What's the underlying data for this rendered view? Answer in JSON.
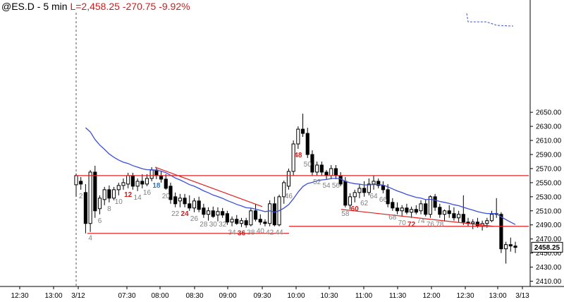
{
  "header": {
    "symbol": "@ES.D - 5 min",
    "last_label": "L=2,458.25",
    "change": "-270.75",
    "change_pct": "-9.92%"
  },
  "colors": {
    "up_candle": "#ffffff",
    "down_candle": "#000000",
    "ema": "#3b4fd9",
    "trendline": "#e02020",
    "bar_number_gray": "#808080",
    "bar_number_red": "#d01c1c",
    "bar_number_blue": "#1e78d0",
    "prev_day_dashed": "#3b4fd9"
  },
  "chart_data": {
    "type": "candlestick",
    "title": "@ES.D - 5 min",
    "ylim": [
      2400,
      2660
    ],
    "y_ticks": [
      "2650.00",
      "2630.00",
      "2610.00",
      "2590.00",
      "2570.00",
      "2550.00",
      "2530.00",
      "2510.00",
      "2490.00",
      "2470.00",
      "2450.00",
      "2430.00",
      "2410.00"
    ],
    "x_ticks": [
      "12:30",
      "13:00",
      "3/12",
      "07:30",
      "08:00",
      "08:30",
      "09:00",
      "09:30",
      "10:00",
      "10:30",
      "11:00",
      "11:30",
      "12:00",
      "12:30",
      "13:00",
      "3/13"
    ],
    "last_price": "2458.25",
    "candles": [
      {
        "o": 2547,
        "h": 2563,
        "l": 2530,
        "c": 2560
      },
      {
        "o": 2552,
        "h": 2558,
        "l": 2540,
        "c": 2548
      },
      {
        "o": 2536,
        "h": 2548,
        "l": 2478,
        "c": 2492
      },
      {
        "o": 2492,
        "h": 2568,
        "l": 2480,
        "c": 2565
      },
      {
        "o": 2565,
        "h": 2574,
        "l": 2500,
        "c": 2510
      },
      {
        "o": 2513,
        "h": 2532,
        "l": 2505,
        "c": 2528
      },
      {
        "o": 2526,
        "h": 2544,
        "l": 2518,
        "c": 2540
      },
      {
        "o": 2540,
        "h": 2546,
        "l": 2522,
        "c": 2528
      },
      {
        "o": 2528,
        "h": 2544,
        "l": 2525,
        "c": 2540
      },
      {
        "o": 2540,
        "h": 2550,
        "l": 2532,
        "c": 2546
      },
      {
        "o": 2546,
        "h": 2556,
        "l": 2540,
        "c": 2550
      },
      {
        "o": 2548,
        "h": 2564,
        "l": 2542,
        "c": 2560
      },
      {
        "o": 2560,
        "h": 2564,
        "l": 2540,
        "c": 2545
      },
      {
        "o": 2545,
        "h": 2556,
        "l": 2538,
        "c": 2552
      },
      {
        "o": 2552,
        "h": 2562,
        "l": 2542,
        "c": 2548
      },
      {
        "o": 2548,
        "h": 2562,
        "l": 2545,
        "c": 2556
      },
      {
        "o": 2556,
        "h": 2572,
        "l": 2552,
        "c": 2568
      },
      {
        "o": 2568,
        "h": 2572,
        "l": 2555,
        "c": 2560
      },
      {
        "o": 2560,
        "h": 2566,
        "l": 2550,
        "c": 2555
      },
      {
        "o": 2555,
        "h": 2562,
        "l": 2540,
        "c": 2542
      },
      {
        "o": 2545,
        "h": 2550,
        "l": 2520,
        "c": 2526
      },
      {
        "o": 2530,
        "h": 2536,
        "l": 2515,
        "c": 2520
      },
      {
        "o": 2524,
        "h": 2534,
        "l": 2515,
        "c": 2528
      },
      {
        "o": 2528,
        "h": 2534,
        "l": 2515,
        "c": 2520
      },
      {
        "o": 2520,
        "h": 2532,
        "l": 2510,
        "c": 2514
      },
      {
        "o": 2514,
        "h": 2528,
        "l": 2508,
        "c": 2524
      },
      {
        "o": 2524,
        "h": 2530,
        "l": 2508,
        "c": 2512
      },
      {
        "o": 2514,
        "h": 2520,
        "l": 2500,
        "c": 2505
      },
      {
        "o": 2505,
        "h": 2515,
        "l": 2496,
        "c": 2510
      },
      {
        "o": 2510,
        "h": 2516,
        "l": 2500,
        "c": 2502
      },
      {
        "o": 2504,
        "h": 2515,
        "l": 2495,
        "c": 2509
      },
      {
        "o": 2509,
        "h": 2514,
        "l": 2500,
        "c": 2504
      },
      {
        "o": 2506,
        "h": 2510,
        "l": 2490,
        "c": 2494
      },
      {
        "o": 2494,
        "h": 2502,
        "l": 2488,
        "c": 2498
      },
      {
        "o": 2498,
        "h": 2504,
        "l": 2490,
        "c": 2492
      },
      {
        "o": 2492,
        "h": 2500,
        "l": 2487,
        "c": 2496
      },
      {
        "o": 2496,
        "h": 2500,
        "l": 2486,
        "c": 2490
      },
      {
        "o": 2490,
        "h": 2514,
        "l": 2488,
        "c": 2510
      },
      {
        "o": 2510,
        "h": 2520,
        "l": 2495,
        "c": 2498
      },
      {
        "o": 2498,
        "h": 2505,
        "l": 2490,
        "c": 2494
      },
      {
        "o": 2494,
        "h": 2498,
        "l": 2488,
        "c": 2492
      },
      {
        "o": 2492,
        "h": 2525,
        "l": 2488,
        "c": 2520
      },
      {
        "o": 2520,
        "h": 2530,
        "l": 2488,
        "c": 2490
      },
      {
        "o": 2490,
        "h": 2533,
        "l": 2488,
        "c": 2530
      },
      {
        "o": 2530,
        "h": 2553,
        "l": 2520,
        "c": 2550
      },
      {
        "o": 2545,
        "h": 2570,
        "l": 2540,
        "c": 2566
      },
      {
        "o": 2566,
        "h": 2610,
        "l": 2560,
        "c": 2605
      },
      {
        "o": 2605,
        "h": 2630,
        "l": 2598,
        "c": 2626
      },
      {
        "o": 2626,
        "h": 2648,
        "l": 2615,
        "c": 2620
      },
      {
        "o": 2620,
        "h": 2628,
        "l": 2585,
        "c": 2590
      },
      {
        "o": 2590,
        "h": 2596,
        "l": 2560,
        "c": 2565
      },
      {
        "o": 2565,
        "h": 2580,
        "l": 2560,
        "c": 2575
      },
      {
        "o": 2575,
        "h": 2580,
        "l": 2560,
        "c": 2565
      },
      {
        "o": 2565,
        "h": 2568,
        "l": 2555,
        "c": 2560
      },
      {
        "o": 2560,
        "h": 2575,
        "l": 2555,
        "c": 2570
      },
      {
        "o": 2570,
        "h": 2575,
        "l": 2555,
        "c": 2560
      },
      {
        "o": 2560,
        "h": 2565,
        "l": 2545,
        "c": 2548
      },
      {
        "o": 2552,
        "h": 2558,
        "l": 2515,
        "c": 2518
      },
      {
        "o": 2518,
        "h": 2535,
        "l": 2512,
        "c": 2530
      },
      {
        "o": 2530,
        "h": 2540,
        "l": 2522,
        "c": 2536
      },
      {
        "o": 2536,
        "h": 2548,
        "l": 2528,
        "c": 2542
      },
      {
        "o": 2542,
        "h": 2552,
        "l": 2530,
        "c": 2536
      },
      {
        "o": 2536,
        "h": 2556,
        "l": 2532,
        "c": 2548
      },
      {
        "o": 2548,
        "h": 2560,
        "l": 2540,
        "c": 2552
      },
      {
        "o": 2552,
        "h": 2556,
        "l": 2542,
        "c": 2546
      },
      {
        "o": 2546,
        "h": 2552,
        "l": 2535,
        "c": 2540
      },
      {
        "o": 2540,
        "h": 2548,
        "l": 2515,
        "c": 2520
      },
      {
        "o": 2522,
        "h": 2528,
        "l": 2510,
        "c": 2514
      },
      {
        "o": 2514,
        "h": 2522,
        "l": 2505,
        "c": 2510
      },
      {
        "o": 2510,
        "h": 2518,
        "l": 2502,
        "c": 2514
      },
      {
        "o": 2514,
        "h": 2520,
        "l": 2505,
        "c": 2508
      },
      {
        "o": 2508,
        "h": 2516,
        "l": 2500,
        "c": 2512
      },
      {
        "o": 2512,
        "h": 2518,
        "l": 2505,
        "c": 2508
      },
      {
        "o": 2510,
        "h": 2525,
        "l": 2505,
        "c": 2520
      },
      {
        "o": 2520,
        "h": 2526,
        "l": 2502,
        "c": 2505
      },
      {
        "o": 2505,
        "h": 2532,
        "l": 2500,
        "c": 2530
      },
      {
        "o": 2530,
        "h": 2534,
        "l": 2510,
        "c": 2515
      },
      {
        "o": 2515,
        "h": 2520,
        "l": 2500,
        "c": 2505
      },
      {
        "o": 2505,
        "h": 2512,
        "l": 2495,
        "c": 2510
      },
      {
        "o": 2510,
        "h": 2518,
        "l": 2500,
        "c": 2506
      },
      {
        "o": 2506,
        "h": 2515,
        "l": 2496,
        "c": 2500
      },
      {
        "o": 2500,
        "h": 2510,
        "l": 2494,
        "c": 2505
      },
      {
        "o": 2505,
        "h": 2532,
        "l": 2490,
        "c": 2494
      },
      {
        "o": 2494,
        "h": 2500,
        "l": 2488,
        "c": 2492
      },
      {
        "o": 2492,
        "h": 2498,
        "l": 2484,
        "c": 2494
      },
      {
        "o": 2494,
        "h": 2500,
        "l": 2486,
        "c": 2488
      },
      {
        "o": 2488,
        "h": 2496,
        "l": 2482,
        "c": 2492
      },
      {
        "o": 2492,
        "h": 2500,
        "l": 2486,
        "c": 2496
      },
      {
        "o": 2496,
        "h": 2510,
        "l": 2494,
        "c": 2505
      },
      {
        "o": 2505,
        "h": 2528,
        "l": 2500,
        "c": 2506
      },
      {
        "o": 2505,
        "h": 2508,
        "l": 2450,
        "c": 2456
      },
      {
        "o": 2456,
        "h": 2466,
        "l": 2435,
        "c": 2462
      },
      {
        "o": 2462,
        "h": 2472,
        "l": 2452,
        "c": 2460
      },
      {
        "o": 2460,
        "h": 2466,
        "l": 2450,
        "c": 2458
      }
    ],
    "bar_labels": [
      {
        "text": "2",
        "bar": 1,
        "color": "gray"
      },
      {
        "text": "4",
        "bar": 3,
        "color": "gray"
      },
      {
        "text": "6",
        "bar": 5,
        "color": "gray"
      },
      {
        "text": "8",
        "bar": 7,
        "color": "gray"
      },
      {
        "text": "10",
        "bar": 9,
        "color": "gray"
      },
      {
        "text": "12",
        "bar": 11,
        "color": "red"
      },
      {
        "text": "14",
        "bar": 13,
        "color": "gray"
      },
      {
        "text": "16",
        "bar": 15,
        "color": "gray"
      },
      {
        "text": "18",
        "bar": 17,
        "color": "blue"
      },
      {
        "text": "20",
        "bar": 19,
        "color": "gray"
      },
      {
        "text": "22",
        "bar": 21,
        "color": "gray"
      },
      {
        "text": "24",
        "bar": 23,
        "color": "red"
      },
      {
        "text": "26",
        "bar": 25,
        "color": "gray"
      },
      {
        "text": "28",
        "bar": 27,
        "color": "gray"
      },
      {
        "text": "30",
        "bar": 29,
        "color": "gray"
      },
      {
        "text": "32",
        "bar": 31,
        "color": "gray"
      },
      {
        "text": "34",
        "bar": 33,
        "color": "gray"
      },
      {
        "text": "36",
        "bar": 35,
        "color": "red"
      },
      {
        "text": "38",
        "bar": 37,
        "color": "gray"
      },
      {
        "text": "40",
        "bar": 39,
        "color": "gray"
      },
      {
        "text": "42",
        "bar": 41,
        "color": "gray"
      },
      {
        "text": "44",
        "bar": 43,
        "color": "gray"
      },
      {
        "text": "46",
        "bar": 45,
        "color": "gray"
      },
      {
        "text": "48",
        "bar": 47,
        "color": "red"
      },
      {
        "text": "50",
        "bar": 49,
        "color": "gray"
      },
      {
        "text": "52",
        "bar": 51,
        "color": "gray"
      },
      {
        "text": "54",
        "bar": 53,
        "color": "gray"
      },
      {
        "text": "56",
        "bar": 55,
        "color": "gray"
      },
      {
        "text": "58",
        "bar": 57,
        "color": "gray"
      },
      {
        "text": "60",
        "bar": 59,
        "color": "red"
      },
      {
        "text": "62",
        "bar": 61,
        "color": "gray"
      },
      {
        "text": "64",
        "bar": 63,
        "color": "gray"
      },
      {
        "text": "66",
        "bar": 65,
        "color": "gray"
      },
      {
        "text": "68",
        "bar": 67,
        "color": "gray"
      },
      {
        "text": "70",
        "bar": 69,
        "color": "gray"
      },
      {
        "text": "72",
        "bar": 71,
        "color": "red"
      },
      {
        "text": "74",
        "bar": 73,
        "color": "gray"
      },
      {
        "text": "76",
        "bar": 75,
        "color": "gray"
      },
      {
        "text": "78",
        "bar": 77,
        "color": "gray"
      }
    ]
  }
}
